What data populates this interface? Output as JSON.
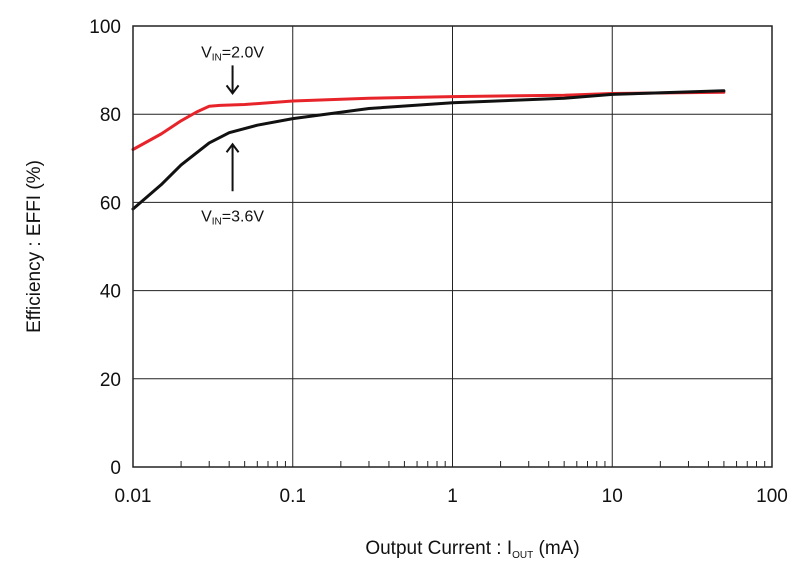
{
  "chart_data": {
    "type": "line",
    "x_scale": "log",
    "xlim": [
      0.01,
      100
    ],
    "ylim": [
      0,
      100
    ],
    "grid": true,
    "x_ticks": [
      0.01,
      0.1,
      1,
      10,
      100
    ],
    "x_tick_labels": [
      "0.01",
      "0.1",
      "1",
      "10",
      "100"
    ],
    "y_ticks": [
      0,
      20,
      40,
      60,
      80,
      100
    ],
    "y_tick_labels": [
      "0",
      "20",
      "40",
      "60",
      "80",
      "100"
    ],
    "xlabel": {
      "main": "Output Current : I",
      "sub": "OUT",
      "unit": " (mA)"
    },
    "ylabel": "Efficiency : EFFI (%)",
    "series": [
      {
        "color": "#e8242b",
        "x": [
          0.01,
          0.015,
          0.02,
          0.025,
          0.03,
          0.035,
          0.05,
          0.1,
          0.3,
          1,
          5,
          10,
          50
        ],
        "y": [
          72,
          75.5,
          78.5,
          80.5,
          81.8,
          82,
          82.2,
          83,
          83.6,
          84,
          84.3,
          84.7,
          85
        ]
      },
      {
        "color": "#111111",
        "x": [
          0.01,
          0.015,
          0.02,
          0.03,
          0.04,
          0.06,
          0.1,
          0.3,
          1,
          5,
          10,
          50
        ],
        "y": [
          58.5,
          64,
          68.5,
          73.5,
          75.8,
          77.5,
          79,
          81.3,
          82.6,
          83.6,
          84.5,
          85.3
        ]
      }
    ],
    "annotations": [
      {
        "main": "V",
        "sub": "IN",
        "tail": "=2.0V",
        "point_x": 0.042,
        "point_y": 82,
        "label_above": true
      },
      {
        "main": "V",
        "sub": "IN",
        "tail": "=3.6V",
        "point_x": 0.042,
        "point_y": 75,
        "label_above": false
      }
    ]
  }
}
